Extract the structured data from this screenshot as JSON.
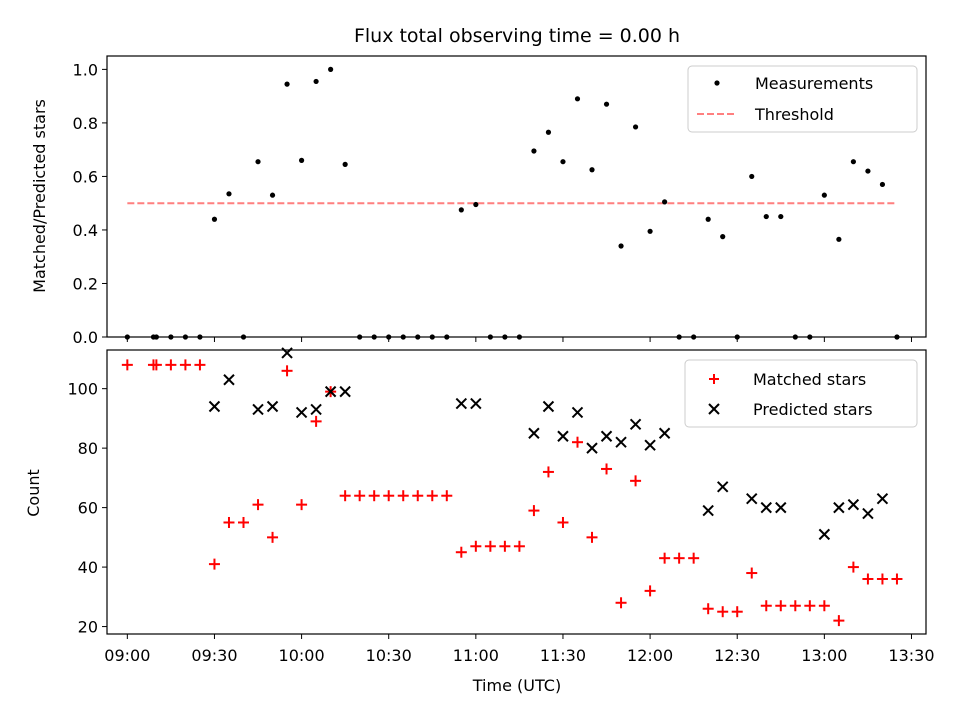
{
  "chart_data": [
    {
      "type": "scatter",
      "title": "Flux total observing time = 0.00 h",
      "ylabel": "Matched/Predicted stars",
      "ylim": [
        0,
        1.05
      ],
      "yticks": [
        "0.0",
        "0.2",
        "0.4",
        "0.6",
        "0.8",
        "1.0"
      ],
      "xlim": [
        "08:53",
        "13:35"
      ],
      "grid": false,
      "legend_position": "top-right",
      "legend": [
        "Measurements",
        "Threshold"
      ],
      "series": [
        {
          "name": "Measurements",
          "marker": "dot",
          "color": "#000000",
          "x": [
            "09:00",
            "09:09",
            "09:10",
            "09:15",
            "09:20",
            "09:25",
            "09:30",
            "09:35",
            "09:40",
            "09:45",
            "09:50",
            "09:55",
            "10:00",
            "10:05",
            "10:10",
            "10:15",
            "10:20",
            "10:25",
            "10:30",
            "10:35",
            "10:40",
            "10:45",
            "10:50",
            "10:55",
            "11:00",
            "11:05",
            "11:10",
            "11:15",
            "11:20",
            "11:25",
            "11:30",
            "11:35",
            "11:40",
            "11:45",
            "11:50",
            "11:55",
            "12:00",
            "12:05",
            "12:10",
            "12:15",
            "12:20",
            "12:25",
            "12:30",
            "12:35",
            "12:40",
            "12:45",
            "12:50",
            "12:55",
            "13:00",
            "13:05",
            "13:10",
            "13:15",
            "13:20",
            "13:25"
          ],
          "y": [
            0,
            0,
            0,
            0,
            0,
            0,
            0.44,
            0.535,
            0,
            0.655,
            0.53,
            0.945,
            0.66,
            0.955,
            1.0,
            0.645,
            0,
            0,
            0,
            0,
            0,
            0,
            0,
            0.475,
            0.495,
            0,
            0,
            0,
            0.695,
            0.765,
            0.655,
            0.89,
            0.625,
            0.87,
            0.34,
            0.785,
            0.395,
            0.505,
            0,
            0,
            0.44,
            0.375,
            0,
            0.6,
            0.45,
            0.45,
            0,
            0,
            0.53,
            0.365,
            0.655,
            0.62,
            0.57,
            0
          ]
        },
        {
          "name": "Threshold",
          "style": "dashed",
          "color": "#ff7f7f",
          "x": [
            "09:00",
            "13:25"
          ],
          "y": [
            0.5,
            0.5
          ]
        }
      ]
    },
    {
      "type": "scatter",
      "title": "",
      "xlabel": "Time (UTC)",
      "ylabel": "Count",
      "ylim": [
        17.5,
        113
      ],
      "yticks": [
        "20",
        "40",
        "60",
        "80",
        "100"
      ],
      "xticks": [
        "09:00",
        "09:30",
        "10:00",
        "10:30",
        "11:00",
        "11:30",
        "12:00",
        "12:30",
        "13:00",
        "13:30"
      ],
      "xlim": [
        "08:53",
        "13:35"
      ],
      "grid": false,
      "legend_position": "top-right",
      "legend": [
        "Matched stars",
        "Predicted stars"
      ],
      "series": [
        {
          "name": "Matched stars",
          "marker": "plus",
          "color": "#ff0000",
          "x": [
            "09:00",
            "09:09",
            "09:10",
            "09:15",
            "09:20",
            "09:25",
            "09:30",
            "09:35",
            "09:40",
            "09:45",
            "09:50",
            "09:55",
            "10:00",
            "10:05",
            "10:10",
            "10:15",
            "10:20",
            "10:25",
            "10:30",
            "10:35",
            "10:40",
            "10:45",
            "10:50",
            "10:55",
            "11:00",
            "11:05",
            "11:10",
            "11:15",
            "11:20",
            "11:25",
            "11:30",
            "11:35",
            "11:40",
            "11:45",
            "11:50",
            "11:55",
            "12:00",
            "12:05",
            "12:10",
            "12:15",
            "12:20",
            "12:25",
            "12:30",
            "12:35",
            "12:40",
            "12:45",
            "12:50",
            "12:55",
            "13:00",
            "13:05",
            "13:10",
            "13:15",
            "13:20",
            "13:25"
          ],
          "y": [
            108,
            108,
            108,
            108,
            108,
            108,
            41,
            55,
            55,
            61,
            50,
            106,
            61,
            89,
            99,
            64,
            64,
            64,
            64,
            64,
            64,
            64,
            64,
            45,
            47,
            47,
            47,
            47,
            59,
            72,
            55,
            82,
            50,
            73,
            28,
            69,
            32,
            43,
            43,
            43,
            26,
            25,
            25,
            38,
            27,
            27,
            27,
            27,
            27,
            22,
            40,
            36,
            36,
            36
          ]
        },
        {
          "name": "Predicted stars",
          "marker": "x",
          "color": "#000000",
          "x": [
            "09:30",
            "09:35",
            "09:45",
            "09:50",
            "09:55",
            "10:00",
            "10:05",
            "10:10",
            "10:15",
            "10:55",
            "11:00",
            "11:20",
            "11:25",
            "11:30",
            "11:35",
            "11:40",
            "11:45",
            "11:50",
            "11:55",
            "12:00",
            "12:05",
            "12:20",
            "12:25",
            "12:35",
            "12:40",
            "12:45",
            "13:00",
            "13:05",
            "13:10",
            "13:15",
            "13:20"
          ],
          "y": [
            94,
            103,
            93,
            94,
            112,
            92,
            93,
            99,
            99,
            95,
            95,
            85,
            94,
            84,
            92,
            80,
            84,
            82,
            88,
            81,
            85,
            59,
            67,
            63,
            60,
            60,
            51,
            60,
            61,
            58,
            63
          ]
        }
      ]
    }
  ]
}
